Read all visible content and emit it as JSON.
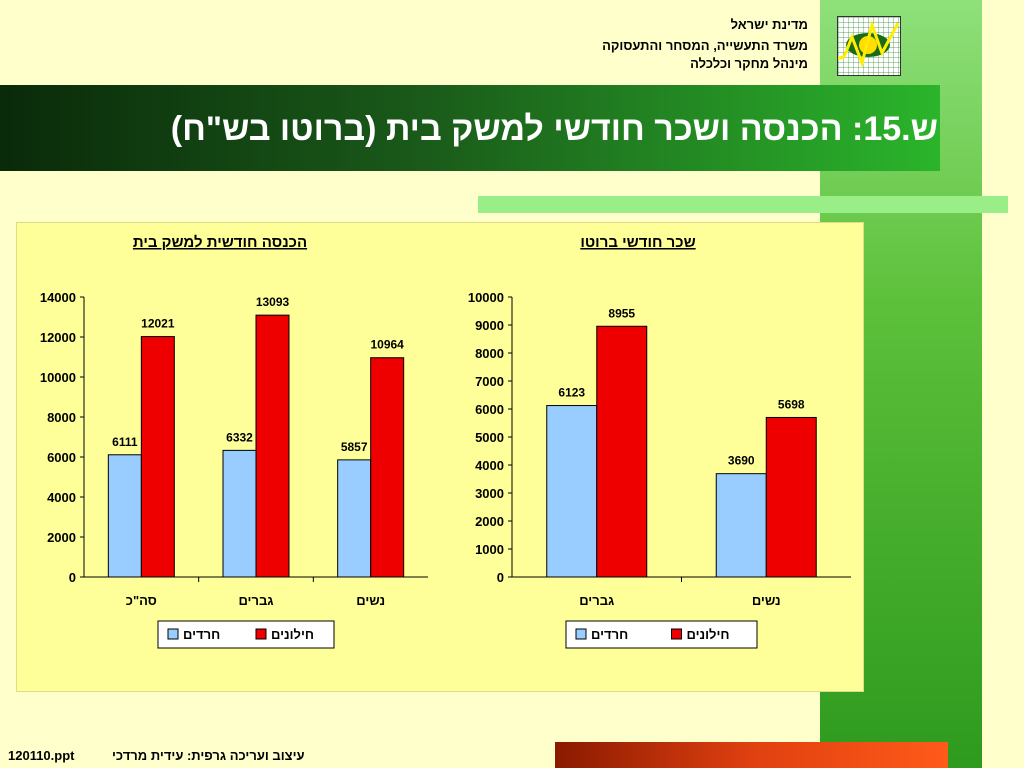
{
  "header": {
    "line1": "מדינת ישראל",
    "line2": "משרד התעשייה, המסחר והתעסוקה",
    "line3": "מינהל מחקר וכלכלה"
  },
  "title": "ש.15: הכנסה ושכר חודשי למשק בית (ברוטו בש\"ח)",
  "footer": {
    "file": "120110.ppt",
    "credit": "עיצוב ועריכה גרפית: עידית מרדכי"
  },
  "colors": {
    "haredim": "#99ccff",
    "hilonim": "#ee0000"
  },
  "chart_data": [
    {
      "type": "bar",
      "title": "הכנסה חודשית למשק בית",
      "categories": [
        "סה\"כ",
        "גברים",
        "נשים"
      ],
      "series": [
        {
          "name": "חרדים",
          "values": [
            6111,
            6332,
            5857
          ]
        },
        {
          "name": "חילונים",
          "values": [
            12021,
            13093,
            10964
          ]
        }
      ],
      "ylim": [
        0,
        14000
      ],
      "yticks": [
        0,
        2000,
        4000,
        6000,
        8000,
        10000,
        12000,
        14000
      ],
      "legend": "bottom"
    },
    {
      "type": "bar",
      "title": "שכר חודשי ברוטו",
      "categories": [
        "גברים",
        "נשים"
      ],
      "series": [
        {
          "name": "חרדים",
          "values": [
            6123,
            3690
          ]
        },
        {
          "name": "חילונים",
          "values": [
            8955,
            5698
          ]
        }
      ],
      "ylim": [
        0,
        10000
      ],
      "yticks": [
        0,
        1000,
        2000,
        3000,
        4000,
        5000,
        6000,
        7000,
        8000,
        9000,
        10000
      ],
      "legend": "bottom"
    }
  ]
}
